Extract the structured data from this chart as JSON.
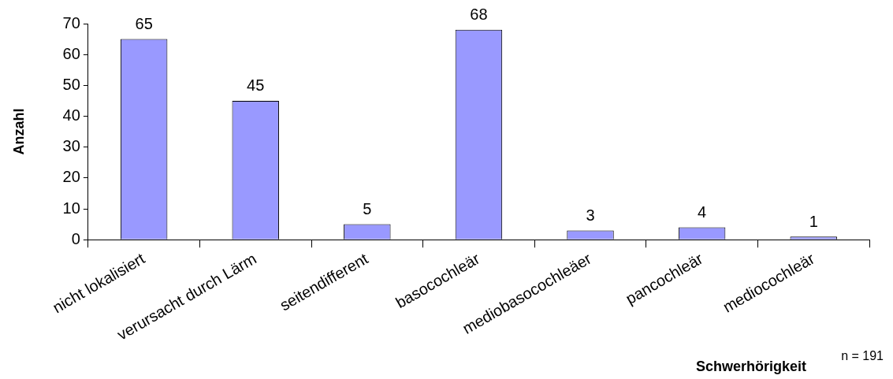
{
  "chart_data": {
    "type": "bar",
    "xlabel": "Schwerhörigkeit",
    "ylabel": "Anzahl",
    "categories": [
      "nicht lokalisiert",
      "verursacht durch Lärm",
      "seitendifferent",
      "basocochleär",
      "mediobasocochleäer",
      "pancochleär",
      "mediocochleär"
    ],
    "values": [
      65,
      45,
      5,
      68,
      3,
      4,
      1
    ],
    "color": "#9999ff",
    "ylim": [
      0,
      70
    ],
    "yticks": [
      0,
      10,
      20,
      30,
      40,
      50,
      60,
      70
    ],
    "grid": false,
    "legend": false,
    "data_labels": true,
    "annotations": [
      "n = 191"
    ]
  }
}
